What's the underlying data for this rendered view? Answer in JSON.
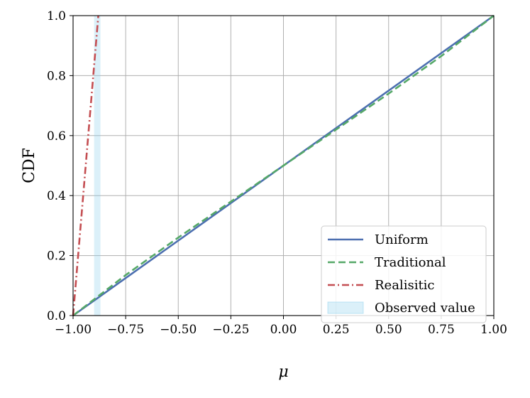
{
  "chart_data": {
    "type": "line",
    "title": "",
    "xlabel": "μ",
    "ylabel": "CDF",
    "xlim": [
      -1.0,
      1.0
    ],
    "ylim": [
      0.0,
      1.0
    ],
    "xticks": [
      "−1.00",
      "−0.75",
      "−0.50",
      "−0.25",
      "0.00",
      "0.25",
      "0.50",
      "0.75",
      "1.00"
    ],
    "yticks": [
      "0.0",
      "0.2",
      "0.4",
      "0.6",
      "0.8",
      "1.0"
    ],
    "grid": true,
    "legend_position": "lower-right",
    "series": [
      {
        "name": "Uniform",
        "style": "solid",
        "color": "#4c6fb0",
        "x": [
          -1.0,
          -0.5,
          0.0,
          0.5,
          1.0
        ],
        "y": [
          0.0,
          0.25,
          0.5,
          0.75,
          1.0
        ]
      },
      {
        "name": "Traditional",
        "style": "dashed",
        "color": "#55a868",
        "x": [
          -1.0,
          -0.75,
          -0.5,
          -0.25,
          0.0,
          0.25,
          0.5,
          0.75,
          1.0
        ],
        "y": [
          0.0,
          0.135,
          0.26,
          0.38,
          0.5,
          0.62,
          0.74,
          0.865,
          1.0
        ]
      },
      {
        "name": "Realisitic",
        "style": "dashdot",
        "color": "#c44e52",
        "x": [
          -1.0,
          -0.88
        ],
        "y": [
          0.0,
          1.0
        ]
      }
    ],
    "observed": {
      "name": "Observed value",
      "color": "#87ceeb",
      "x_range": [
        -0.9,
        -0.87
      ]
    }
  }
}
